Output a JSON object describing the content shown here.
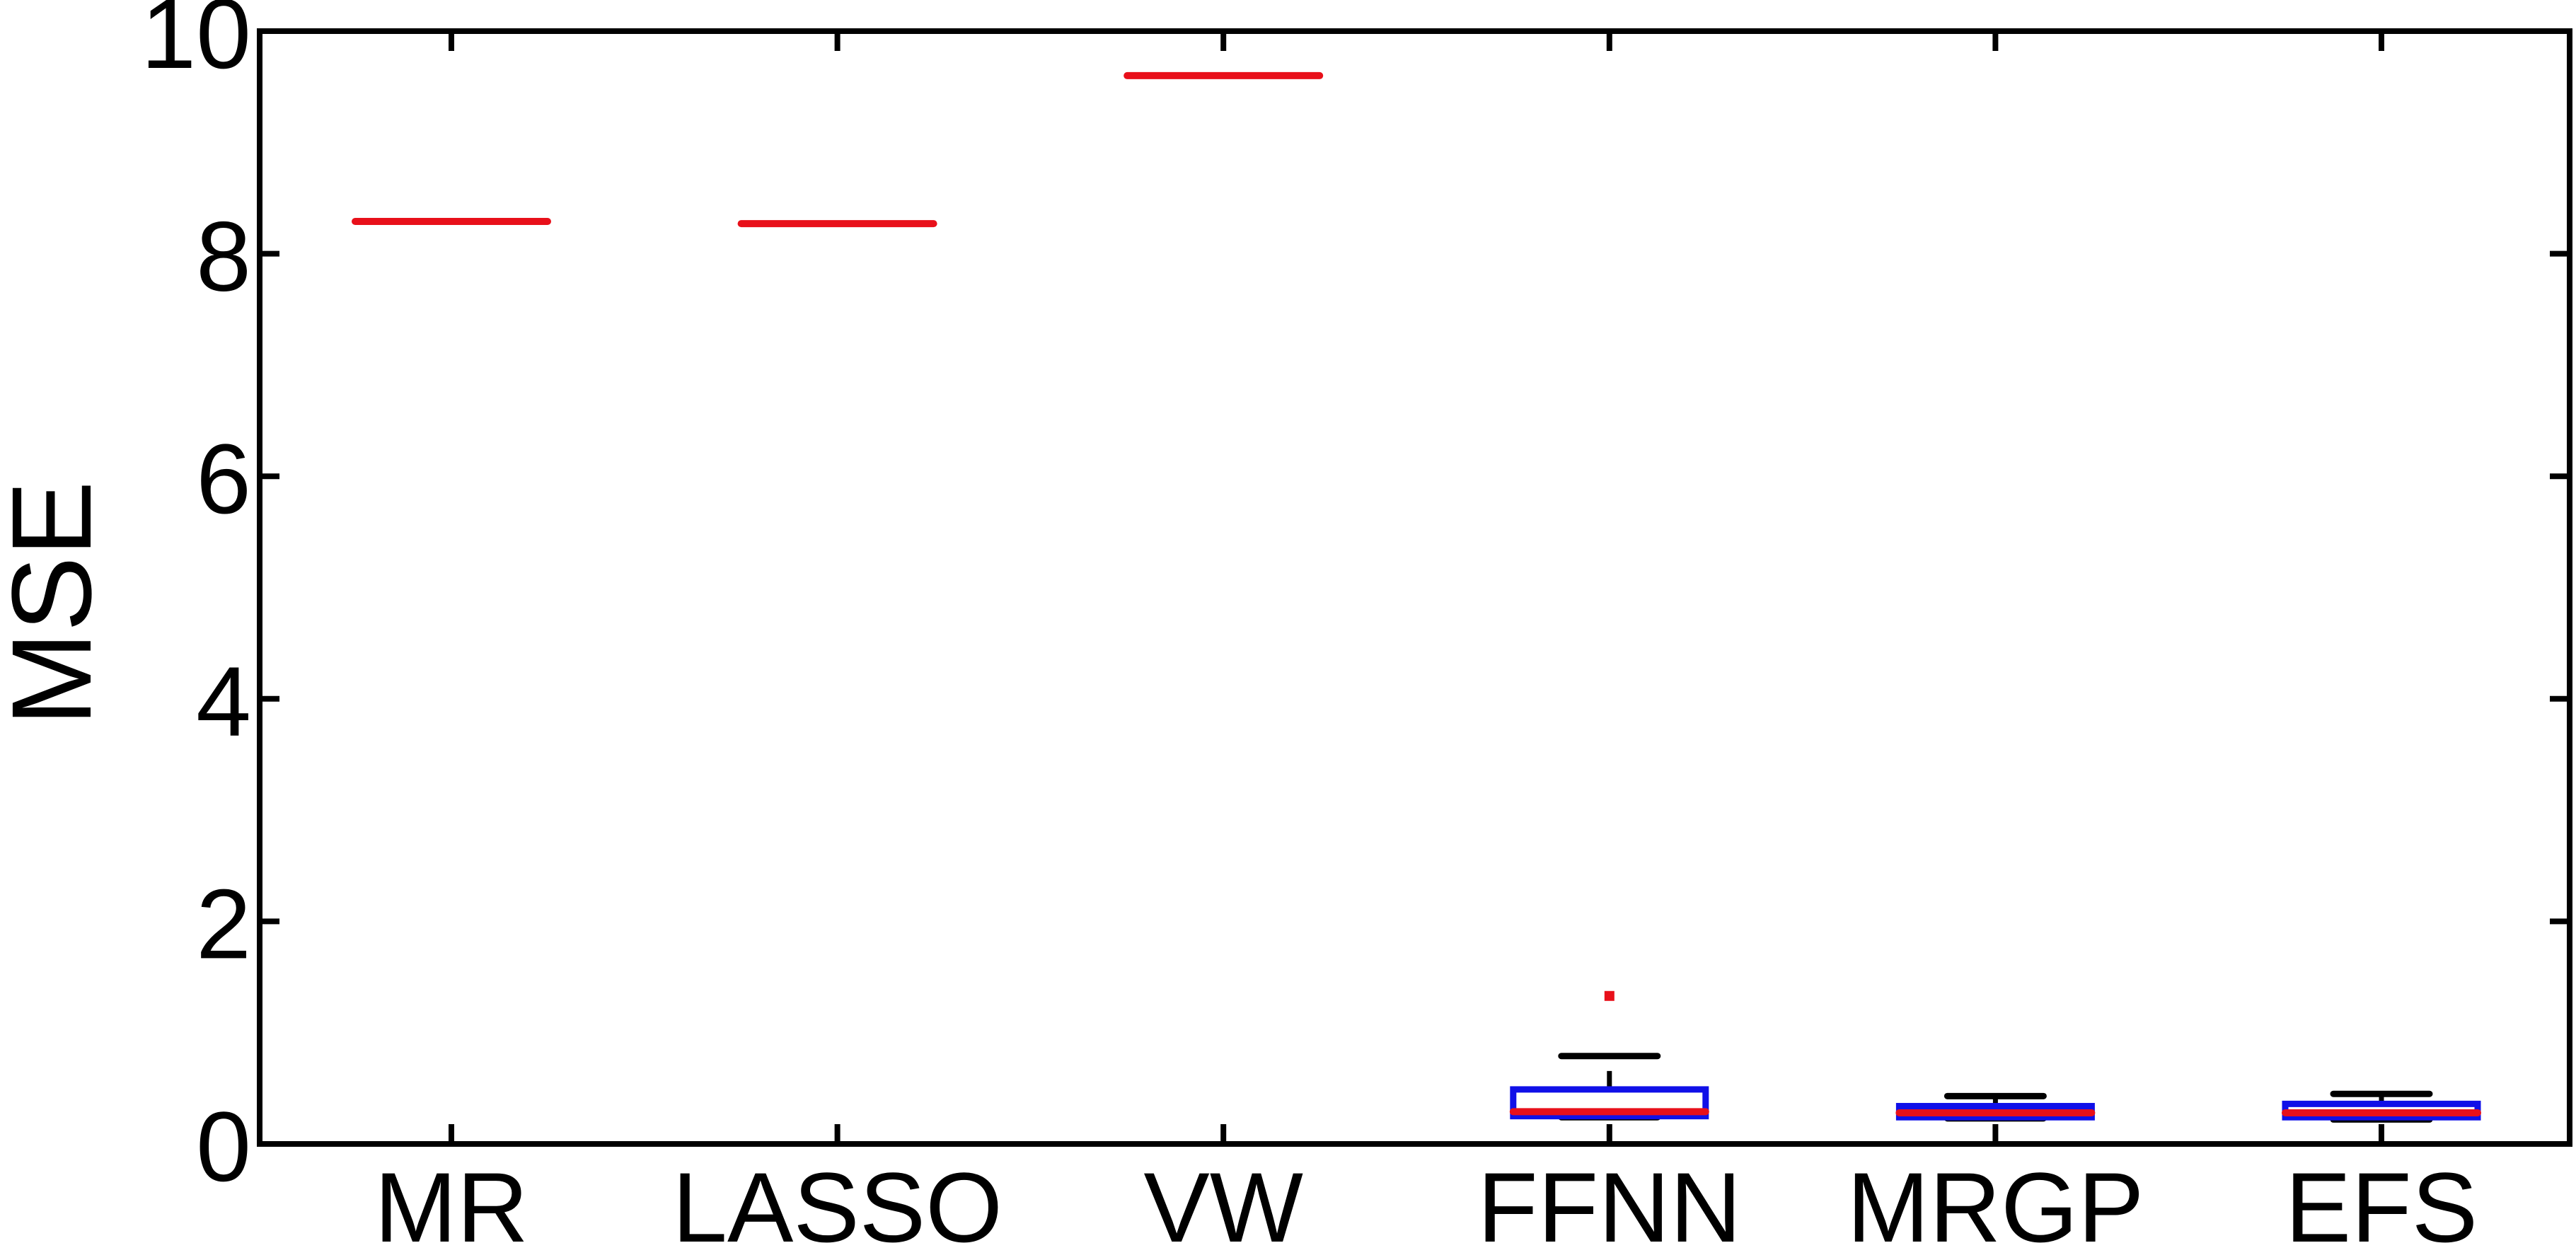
{
  "chart_data": {
    "type": "box",
    "categories": [
      "MR",
      "LASSO",
      "VW",
      "FFNN",
      "MRGP",
      "EFS"
    ],
    "ylabel": "MSE",
    "ylim": [
      0,
      10
    ],
    "yticks": [
      0,
      2,
      4,
      6,
      8,
      10
    ],
    "boxes": [
      {
        "name": "MR",
        "min": 8.29,
        "q1": 8.29,
        "median": 8.29,
        "q3": 8.29,
        "max": 8.29,
        "outliers": []
      },
      {
        "name": "LASSO",
        "min": 8.27,
        "q1": 8.27,
        "median": 8.27,
        "q3": 8.27,
        "max": 8.27,
        "outliers": []
      },
      {
        "name": "VW",
        "min": 9.6,
        "q1": 9.6,
        "median": 9.6,
        "q3": 9.6,
        "max": 9.6,
        "outliers": []
      },
      {
        "name": "FFNN",
        "min": 0.24,
        "q1": 0.25,
        "median": 0.29,
        "q3": 0.49,
        "max": 0.79,
        "outliers": [
          1.33
        ]
      },
      {
        "name": "MRGP",
        "min": 0.23,
        "q1": 0.24,
        "median": 0.28,
        "q3": 0.34,
        "max": 0.43,
        "outliers": []
      },
      {
        "name": "EFS",
        "min": 0.22,
        "q1": 0.24,
        "median": 0.28,
        "q3": 0.36,
        "max": 0.45,
        "outliers": []
      }
    ],
    "grid": false,
    "colors": {
      "box": "#1010e8",
      "median": "#e8101a",
      "whisker": "#000000",
      "outlier": "#e8101a",
      "axis": "#000000"
    }
  }
}
